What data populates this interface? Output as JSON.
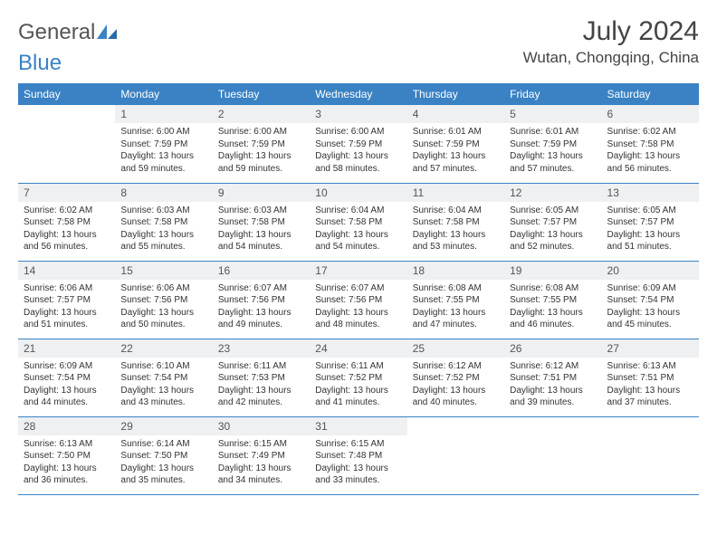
{
  "logo": {
    "word1": "General",
    "word2": "Blue"
  },
  "title": "July 2024",
  "location": "Wutan, Chongqing, China",
  "colors": {
    "header_bg": "#3a82c4",
    "header_text": "#ffffff",
    "daynum_bg": "#eef0f1",
    "border": "#3a82c4",
    "text": "#333333",
    "logo_gray": "#555555",
    "logo_blue": "#3a82c4"
  },
  "weekdays": [
    "Sunday",
    "Monday",
    "Tuesday",
    "Wednesday",
    "Thursday",
    "Friday",
    "Saturday"
  ],
  "weeks": [
    [
      {
        "n": "",
        "lines": []
      },
      {
        "n": "1",
        "lines": [
          "Sunrise: 6:00 AM",
          "Sunset: 7:59 PM",
          "Daylight: 13 hours",
          "and 59 minutes."
        ]
      },
      {
        "n": "2",
        "lines": [
          "Sunrise: 6:00 AM",
          "Sunset: 7:59 PM",
          "Daylight: 13 hours",
          "and 59 minutes."
        ]
      },
      {
        "n": "3",
        "lines": [
          "Sunrise: 6:00 AM",
          "Sunset: 7:59 PM",
          "Daylight: 13 hours",
          "and 58 minutes."
        ]
      },
      {
        "n": "4",
        "lines": [
          "Sunrise: 6:01 AM",
          "Sunset: 7:59 PM",
          "Daylight: 13 hours",
          "and 57 minutes."
        ]
      },
      {
        "n": "5",
        "lines": [
          "Sunrise: 6:01 AM",
          "Sunset: 7:59 PM",
          "Daylight: 13 hours",
          "and 57 minutes."
        ]
      },
      {
        "n": "6",
        "lines": [
          "Sunrise: 6:02 AM",
          "Sunset: 7:58 PM",
          "Daylight: 13 hours",
          "and 56 minutes."
        ]
      }
    ],
    [
      {
        "n": "7",
        "lines": [
          "Sunrise: 6:02 AM",
          "Sunset: 7:58 PM",
          "Daylight: 13 hours",
          "and 56 minutes."
        ]
      },
      {
        "n": "8",
        "lines": [
          "Sunrise: 6:03 AM",
          "Sunset: 7:58 PM",
          "Daylight: 13 hours",
          "and 55 minutes."
        ]
      },
      {
        "n": "9",
        "lines": [
          "Sunrise: 6:03 AM",
          "Sunset: 7:58 PM",
          "Daylight: 13 hours",
          "and 54 minutes."
        ]
      },
      {
        "n": "10",
        "lines": [
          "Sunrise: 6:04 AM",
          "Sunset: 7:58 PM",
          "Daylight: 13 hours",
          "and 54 minutes."
        ]
      },
      {
        "n": "11",
        "lines": [
          "Sunrise: 6:04 AM",
          "Sunset: 7:58 PM",
          "Daylight: 13 hours",
          "and 53 minutes."
        ]
      },
      {
        "n": "12",
        "lines": [
          "Sunrise: 6:05 AM",
          "Sunset: 7:57 PM",
          "Daylight: 13 hours",
          "and 52 minutes."
        ]
      },
      {
        "n": "13",
        "lines": [
          "Sunrise: 6:05 AM",
          "Sunset: 7:57 PM",
          "Daylight: 13 hours",
          "and 51 minutes."
        ]
      }
    ],
    [
      {
        "n": "14",
        "lines": [
          "Sunrise: 6:06 AM",
          "Sunset: 7:57 PM",
          "Daylight: 13 hours",
          "and 51 minutes."
        ]
      },
      {
        "n": "15",
        "lines": [
          "Sunrise: 6:06 AM",
          "Sunset: 7:56 PM",
          "Daylight: 13 hours",
          "and 50 minutes."
        ]
      },
      {
        "n": "16",
        "lines": [
          "Sunrise: 6:07 AM",
          "Sunset: 7:56 PM",
          "Daylight: 13 hours",
          "and 49 minutes."
        ]
      },
      {
        "n": "17",
        "lines": [
          "Sunrise: 6:07 AM",
          "Sunset: 7:56 PM",
          "Daylight: 13 hours",
          "and 48 minutes."
        ]
      },
      {
        "n": "18",
        "lines": [
          "Sunrise: 6:08 AM",
          "Sunset: 7:55 PM",
          "Daylight: 13 hours",
          "and 47 minutes."
        ]
      },
      {
        "n": "19",
        "lines": [
          "Sunrise: 6:08 AM",
          "Sunset: 7:55 PM",
          "Daylight: 13 hours",
          "and 46 minutes."
        ]
      },
      {
        "n": "20",
        "lines": [
          "Sunrise: 6:09 AM",
          "Sunset: 7:54 PM",
          "Daylight: 13 hours",
          "and 45 minutes."
        ]
      }
    ],
    [
      {
        "n": "21",
        "lines": [
          "Sunrise: 6:09 AM",
          "Sunset: 7:54 PM",
          "Daylight: 13 hours",
          "and 44 minutes."
        ]
      },
      {
        "n": "22",
        "lines": [
          "Sunrise: 6:10 AM",
          "Sunset: 7:54 PM",
          "Daylight: 13 hours",
          "and 43 minutes."
        ]
      },
      {
        "n": "23",
        "lines": [
          "Sunrise: 6:11 AM",
          "Sunset: 7:53 PM",
          "Daylight: 13 hours",
          "and 42 minutes."
        ]
      },
      {
        "n": "24",
        "lines": [
          "Sunrise: 6:11 AM",
          "Sunset: 7:52 PM",
          "Daylight: 13 hours",
          "and 41 minutes."
        ]
      },
      {
        "n": "25",
        "lines": [
          "Sunrise: 6:12 AM",
          "Sunset: 7:52 PM",
          "Daylight: 13 hours",
          "and 40 minutes."
        ]
      },
      {
        "n": "26",
        "lines": [
          "Sunrise: 6:12 AM",
          "Sunset: 7:51 PM",
          "Daylight: 13 hours",
          "and 39 minutes."
        ]
      },
      {
        "n": "27",
        "lines": [
          "Sunrise: 6:13 AM",
          "Sunset: 7:51 PM",
          "Daylight: 13 hours",
          "and 37 minutes."
        ]
      }
    ],
    [
      {
        "n": "28",
        "lines": [
          "Sunrise: 6:13 AM",
          "Sunset: 7:50 PM",
          "Daylight: 13 hours",
          "and 36 minutes."
        ]
      },
      {
        "n": "29",
        "lines": [
          "Sunrise: 6:14 AM",
          "Sunset: 7:50 PM",
          "Daylight: 13 hours",
          "and 35 minutes."
        ]
      },
      {
        "n": "30",
        "lines": [
          "Sunrise: 6:15 AM",
          "Sunset: 7:49 PM",
          "Daylight: 13 hours",
          "and 34 minutes."
        ]
      },
      {
        "n": "31",
        "lines": [
          "Sunrise: 6:15 AM",
          "Sunset: 7:48 PM",
          "Daylight: 13 hours",
          "and 33 minutes."
        ]
      },
      {
        "n": "",
        "lines": []
      },
      {
        "n": "",
        "lines": []
      },
      {
        "n": "",
        "lines": []
      }
    ]
  ]
}
